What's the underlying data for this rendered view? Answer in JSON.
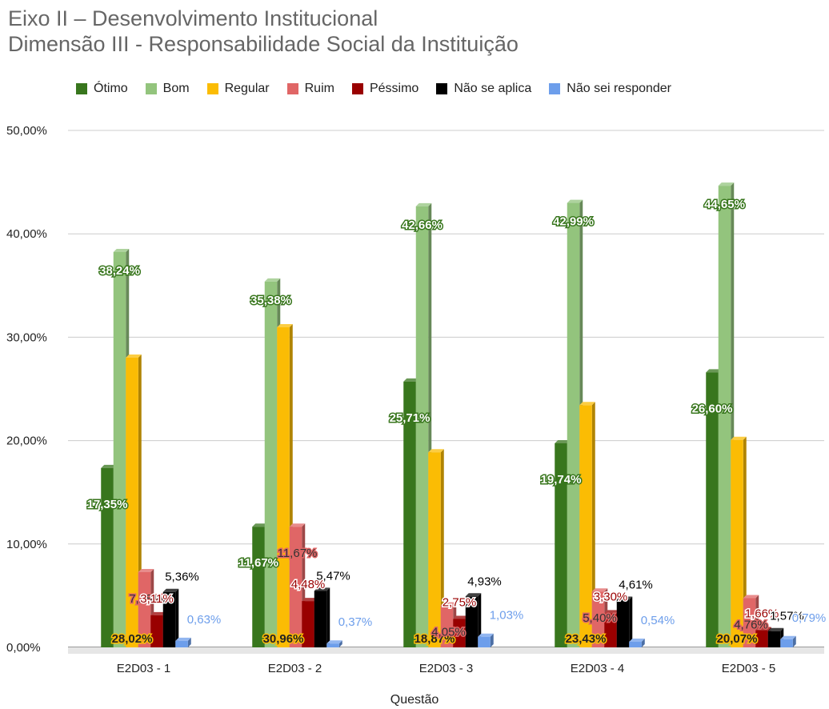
{
  "titles": {
    "line1": "Eixo II – Desenvolvimento Institucional",
    "line2": "Dimensão III - Responsabilidade Social da Instituição"
  },
  "chart_data": {
    "type": "bar",
    "title": "Eixo II – Desenvolvimento Institucional / Dimensão III - Responsabilidade Social da Instituição",
    "xlabel": "Questão",
    "ylabel": "",
    "ylim": [
      0,
      50
    ],
    "y_ticks": [
      "0,00%",
      "10,00%",
      "20,00%",
      "30,00%",
      "40,00%",
      "50,00%"
    ],
    "grid": "horizontal",
    "legend_position": "top",
    "categories": [
      "E2D03 - 1",
      "E2D03 - 2",
      "E2D03 - 3",
      "E2D03 - 4",
      "E2D03 - 5"
    ],
    "series": [
      {
        "name": "Ótimo",
        "color": "#38761d",
        "values": [
          17.35,
          11.67,
          25.71,
          19.74,
          26.6
        ],
        "labels": [
          "17,35%",
          "11,67%",
          "25,71%",
          "19,74%",
          "26,60%"
        ]
      },
      {
        "name": "Bom",
        "color": "#93c47d",
        "values": [
          38.24,
          35.38,
          42.66,
          42.99,
          44.65
        ],
        "labels": [
          "38,24%",
          "35,38%",
          "42,66%",
          "42,99%",
          "44,65%"
        ]
      },
      {
        "name": "Regular",
        "color": "#fbbc04",
        "values": [
          28.02,
          30.96,
          18.87,
          23.43,
          20.07
        ],
        "labels": [
          "28,02%",
          "30,96%",
          "18,87%",
          "23,43%",
          "20,07%"
        ]
      },
      {
        "name": "Ruim",
        "color": "#e06666",
        "values": [
          7.28,
          11.67,
          4.05,
          5.4,
          4.76
        ],
        "labels": [
          "7,28%",
          "11,67%",
          "4,05%",
          "5,40%",
          "4,76%"
        ]
      },
      {
        "name": "Péssimo",
        "color": "#990000",
        "values": [
          3.11,
          4.48,
          2.75,
          3.3,
          1.66
        ],
        "labels": [
          "3,11%",
          "4,48%",
          "2,75%",
          "3,30%",
          "1,66%"
        ]
      },
      {
        "name": "Não se aplica",
        "color": "#000000",
        "values": [
          5.36,
          5.47,
          4.93,
          4.61,
          1.57
        ],
        "labels": [
          "5,36%",
          "5,47%",
          "4,93%",
          "4,61%",
          "1,57%"
        ]
      },
      {
        "name": "Não sei responder",
        "color": "#6d9eeb",
        "values": [
          0.63,
          0.37,
          1.03,
          0.54,
          0.79
        ],
        "labels": [
          "0,63%",
          "0,37%",
          "1,03%",
          "0,54%",
          "0,79%"
        ]
      }
    ]
  }
}
